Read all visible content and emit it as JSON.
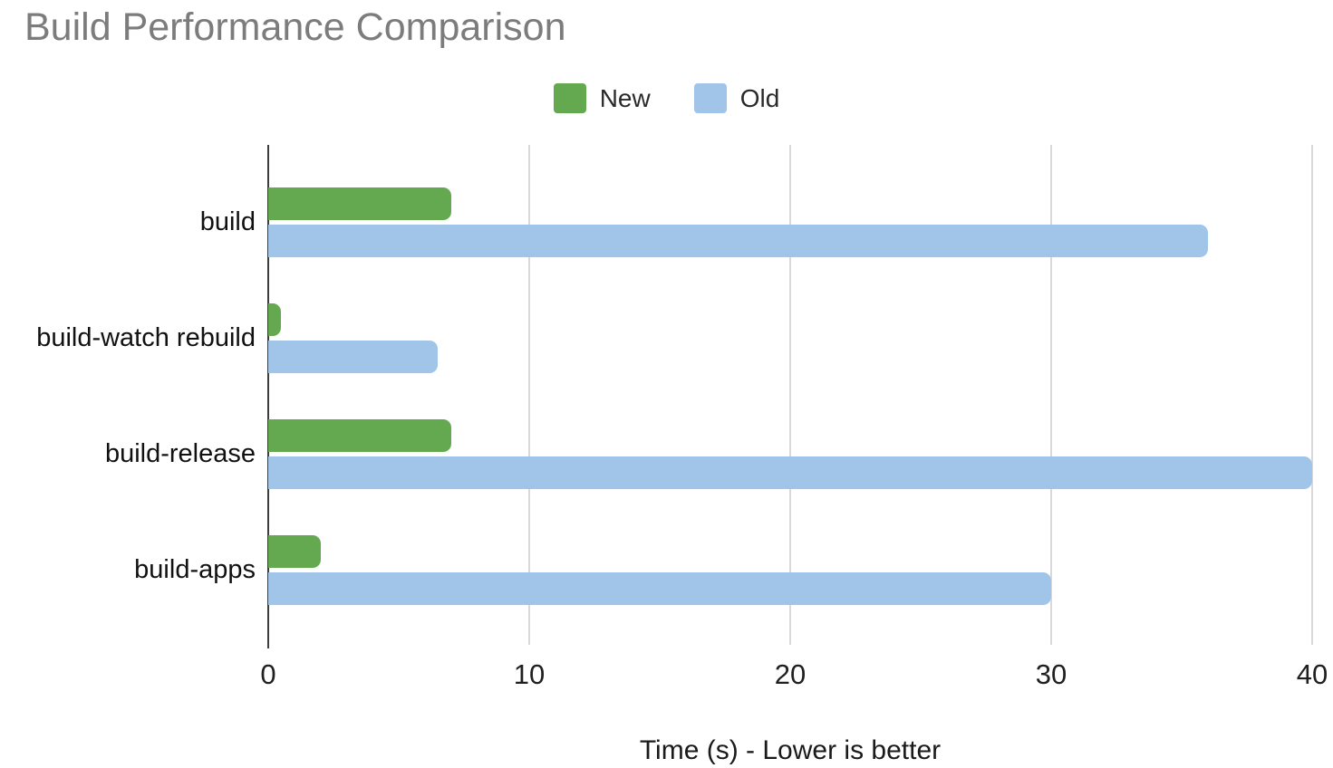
{
  "chart": {
    "title": "Build Performance Comparison",
    "xlabel": "Time (s) - Lower is better"
  },
  "chart_data": {
    "type": "bar",
    "orientation": "horizontal",
    "title": "Build Performance Comparison",
    "categories": [
      "build",
      "build-watch rebuild",
      "build-release",
      "build-apps"
    ],
    "series": [
      {
        "name": "New",
        "color": "#64a850",
        "values": [
          7,
          0.5,
          7,
          2
        ]
      },
      {
        "name": "Old",
        "color": "#a0c5e8",
        "values": [
          36,
          6.5,
          40,
          30
        ]
      }
    ],
    "xlabel": "Time (s) - Lower is better",
    "xlim": [
      0,
      40
    ],
    "xticks": [
      0,
      10,
      20,
      30,
      40
    ],
    "grid": true,
    "legend_position": "top",
    "colors": {
      "title_gray": "#7c7c7c",
      "gridline_gray": "#d9d9d9",
      "axis_dark": "#3c3c3c",
      "background": "#ffffff"
    }
  }
}
